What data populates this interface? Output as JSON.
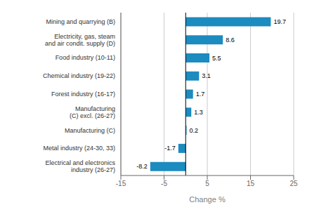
{
  "chart_data": {
    "type": "bar",
    "orientation": "horizontal",
    "categories": [
      "Electrical and electronics industry (26-27)",
      "Metal industry (24-30, 33)",
      "Manufacturing (C)",
      "Manufacturing (C) excl. (26-27)",
      "Forest industry (16-17)",
      "Chemical industry (19-22)",
      "Food industry (10-11)",
      "Electricity, gas, steam and air condit. supply (D)",
      "Mining and quarrying (B)"
    ],
    "values": [
      -8.2,
      -1.7,
      0.2,
      1.3,
      1.7,
      3.1,
      5.5,
      8.6,
      19.7
    ],
    "color": "#1c8bbf",
    "xlabel": "Change %",
    "xlim": [
      -15,
      25
    ],
    "xticks": [
      -15,
      -5,
      5,
      15,
      25
    ],
    "grid": true,
    "data_labels": true
  }
}
